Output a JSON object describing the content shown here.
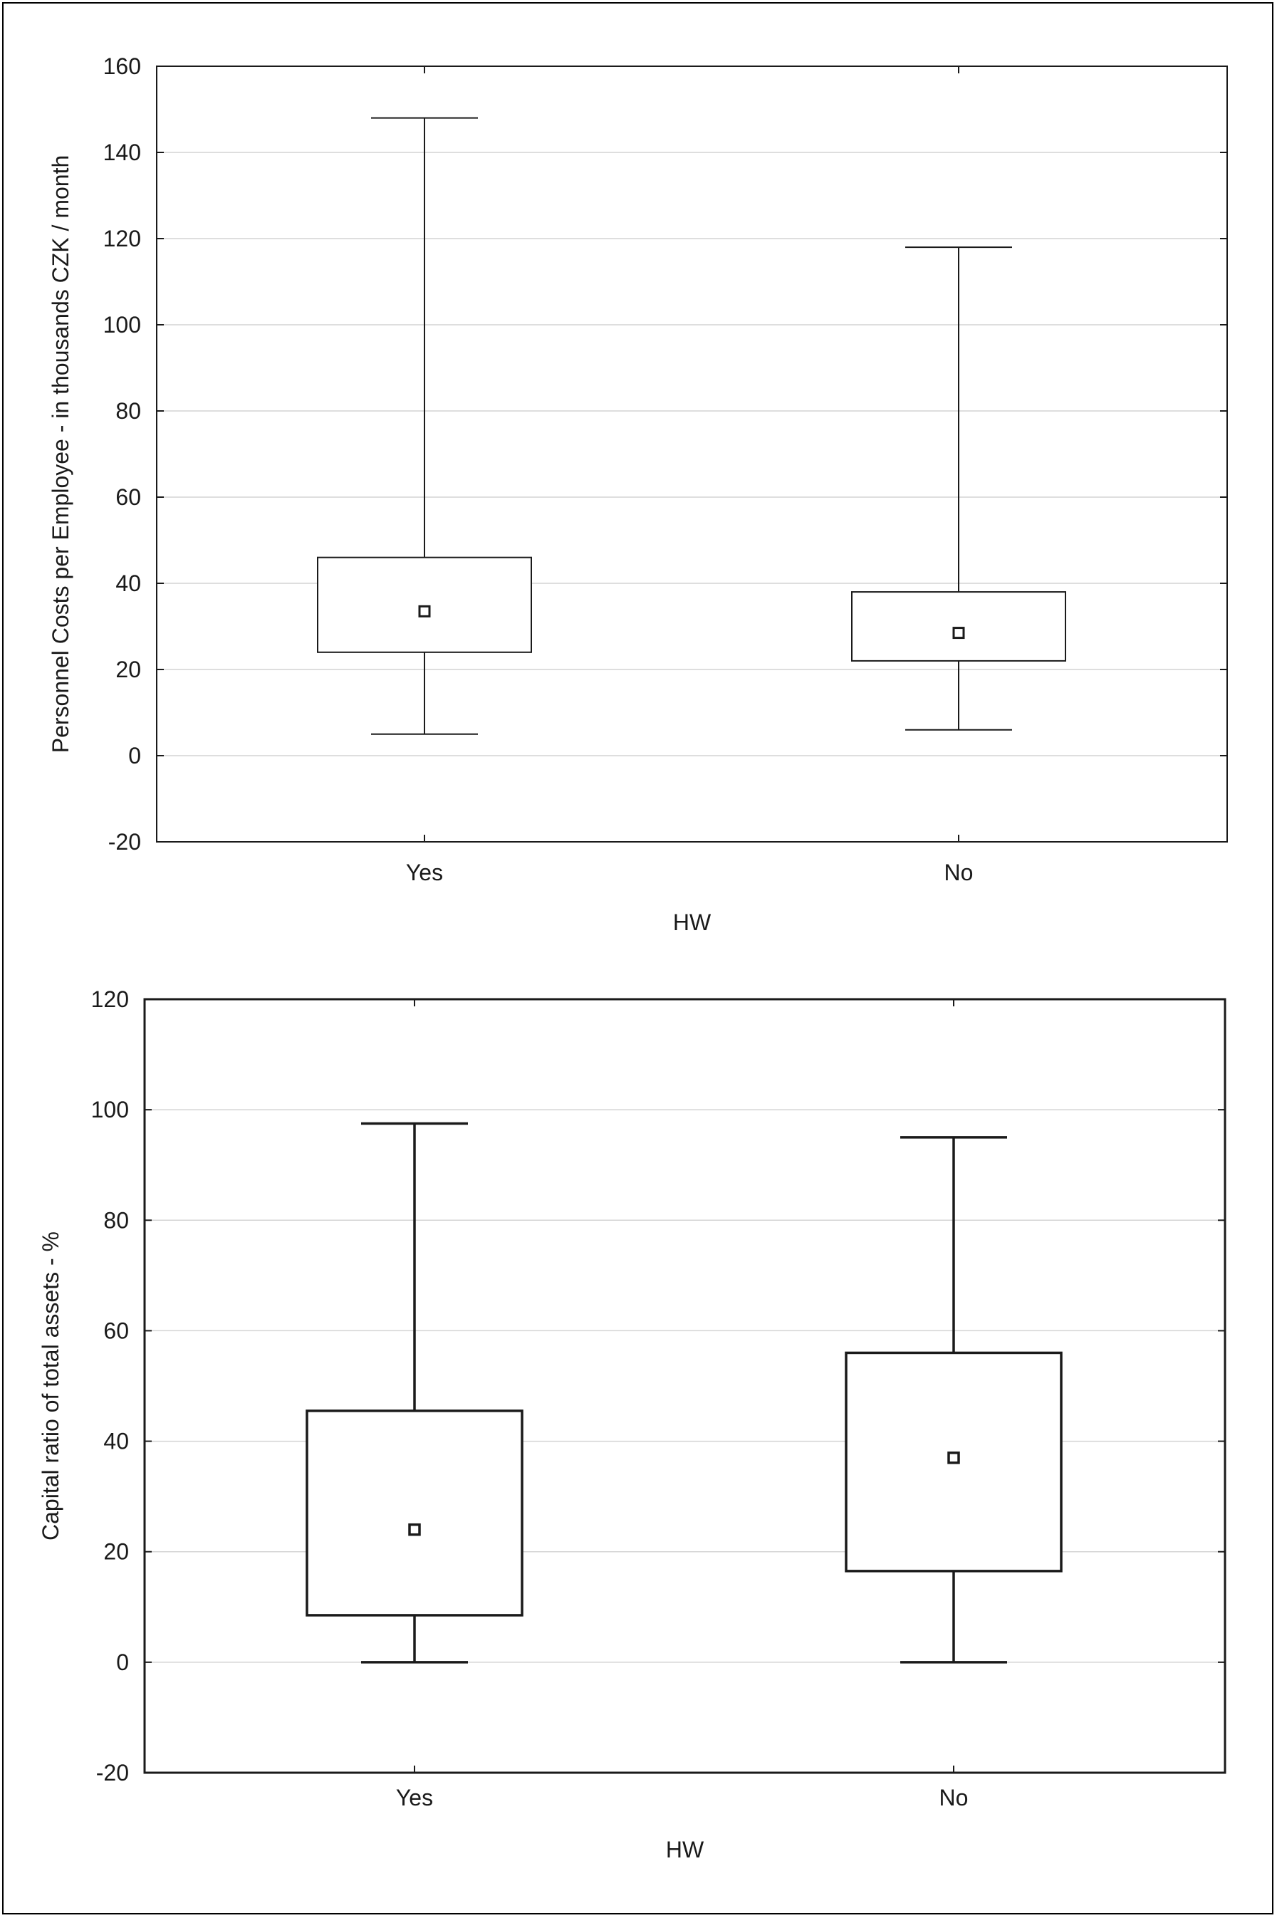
{
  "chart_data": [
    {
      "type": "boxplot",
      "xlabel": "HW",
      "ylabel": "Personnel Costs per Employee - in thousands CZK / month",
      "categories": [
        "Yes",
        "No"
      ],
      "ylim": [
        -20,
        160
      ],
      "yticks": [
        "160",
        "140",
        "120",
        "100",
        "80",
        "60",
        "40",
        "20",
        "0",
        "-20"
      ],
      "grid": true,
      "boxes": [
        {
          "category": "Yes",
          "min": 5,
          "q1": 24,
          "median": 33.5,
          "q3": 46,
          "max": 148
        },
        {
          "category": "No",
          "min": 6,
          "q1": 22,
          "median": 28.5,
          "q3": 38,
          "max": 118
        }
      ]
    },
    {
      "type": "boxplot",
      "xlabel": "HW",
      "ylabel": "Capital ratio of total assets - %",
      "categories": [
        "Yes",
        "No"
      ],
      "ylim": [
        -20,
        120
      ],
      "yticks": [
        "120",
        "100",
        "80",
        "60",
        "40",
        "20",
        "0",
        "-20"
      ],
      "grid": true,
      "boxes": [
        {
          "category": "Yes",
          "min": 0,
          "q1": 8.5,
          "median": 24,
          "q3": 45.5,
          "max": 97.5
        },
        {
          "category": "No",
          "min": 0,
          "q1": 16.5,
          "median": 37,
          "q3": 56,
          "max": 95
        }
      ]
    }
  ],
  "colors": {
    "axis": "#1a1a1a",
    "grid": "#d4d4d4",
    "box_fill": "#ffffff"
  }
}
